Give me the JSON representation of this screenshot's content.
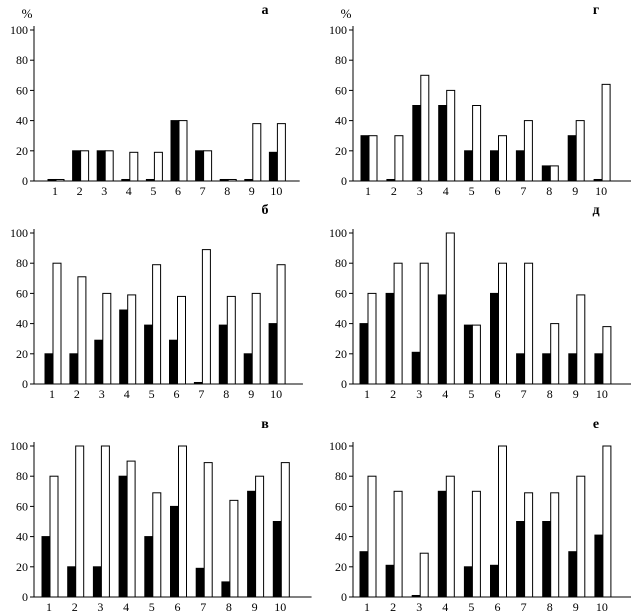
{
  "chart_data": [
    {
      "type": "bar",
      "panel_label": "а",
      "y_unit": "%",
      "categories": [
        "1",
        "2",
        "3",
        "4",
        "5",
        "6",
        "7",
        "8",
        "9",
        "10"
      ],
      "ylim": [
        0,
        100
      ],
      "yticks": [
        "0",
        "20",
        "40",
        "60",
        "80",
        "100"
      ],
      "series": [
        {
          "values": [
            1,
            20,
            20,
            1,
            1,
            40,
            20,
            1,
            1,
            19
          ]
        },
        {
          "values": [
            1,
            20,
            20,
            19,
            19,
            40,
            20,
            1,
            38,
            38
          ]
        }
      ]
    },
    {
      "type": "bar",
      "panel_label": "г",
      "y_unit": "%",
      "categories": [
        "1",
        "2",
        "3",
        "4",
        "5",
        "6",
        "7",
        "8",
        "9",
        "10"
      ],
      "ylim": [
        0,
        100
      ],
      "yticks": [
        "0",
        "20",
        "40",
        "60",
        "80",
        "100"
      ],
      "series": [
        {
          "values": [
            30,
            1,
            50,
            50,
            20,
            20,
            20,
            10,
            30,
            1
          ]
        },
        {
          "values": [
            30,
            30,
            70,
            60,
            50,
            30,
            40,
            10,
            40,
            64
          ]
        }
      ]
    },
    {
      "type": "bar",
      "panel_label": "б",
      "y_unit": "",
      "categories": [
        "1",
        "2",
        "3",
        "4",
        "5",
        "6",
        "7",
        "8",
        "9",
        "10"
      ],
      "ylim": [
        0,
        100
      ],
      "yticks": [
        "0",
        "20",
        "40",
        "60",
        "80",
        "100"
      ],
      "series": [
        {
          "values": [
            20,
            20,
            29,
            49,
            39,
            29,
            1,
            39,
            20,
            40
          ]
        },
        {
          "values": [
            80,
            71,
            60,
            59,
            79,
            58,
            89,
            58,
            60,
            79
          ]
        }
      ]
    },
    {
      "type": "bar",
      "panel_label": "д",
      "y_unit": "",
      "categories": [
        "1",
        "2",
        "3",
        "4",
        "5",
        "6",
        "7",
        "8",
        "9",
        "10"
      ],
      "ylim": [
        0,
        100
      ],
      "yticks": [
        "0",
        "20",
        "40",
        "60",
        "80",
        "100"
      ],
      "series": [
        {
          "values": [
            40,
            60,
            21,
            59,
            39,
            60,
            20,
            20,
            20,
            20
          ]
        },
        {
          "values": [
            60,
            80,
            80,
            100,
            39,
            80,
            80,
            40,
            59,
            38
          ]
        }
      ]
    },
    {
      "type": "bar",
      "panel_label": "в",
      "y_unit": "",
      "categories": [
        "1",
        "2",
        "3",
        "4",
        "5",
        "6",
        "7",
        "8",
        "9",
        "10"
      ],
      "ylim": [
        0,
        100
      ],
      "yticks": [
        "0",
        "20",
        "40",
        "60",
        "80",
        "100"
      ],
      "series": [
        {
          "values": [
            40,
            20,
            20,
            80,
            40,
            60,
            19,
            10,
            70,
            50
          ]
        },
        {
          "values": [
            80,
            100,
            100,
            90,
            69,
            100,
            89,
            64,
            80,
            89
          ]
        }
      ]
    },
    {
      "type": "bar",
      "panel_label": "е",
      "y_unit": "",
      "categories": [
        "1",
        "2",
        "3",
        "4",
        "5",
        "6",
        "7",
        "8",
        "9",
        "10"
      ],
      "ylim": [
        0,
        100
      ],
      "yticks": [
        "0",
        "20",
        "40",
        "60",
        "80",
        "100"
      ],
      "series": [
        {
          "values": [
            30,
            21,
            1,
            70,
            20,
            21,
            50,
            50,
            30,
            41
          ]
        },
        {
          "values": [
            80,
            70,
            29,
            80,
            70,
            100,
            69,
            69,
            80,
            100
          ]
        }
      ]
    }
  ],
  "colors": {
    "series_fill": [
      "#000000",
      "#ffffff"
    ],
    "stroke": "#000000"
  }
}
